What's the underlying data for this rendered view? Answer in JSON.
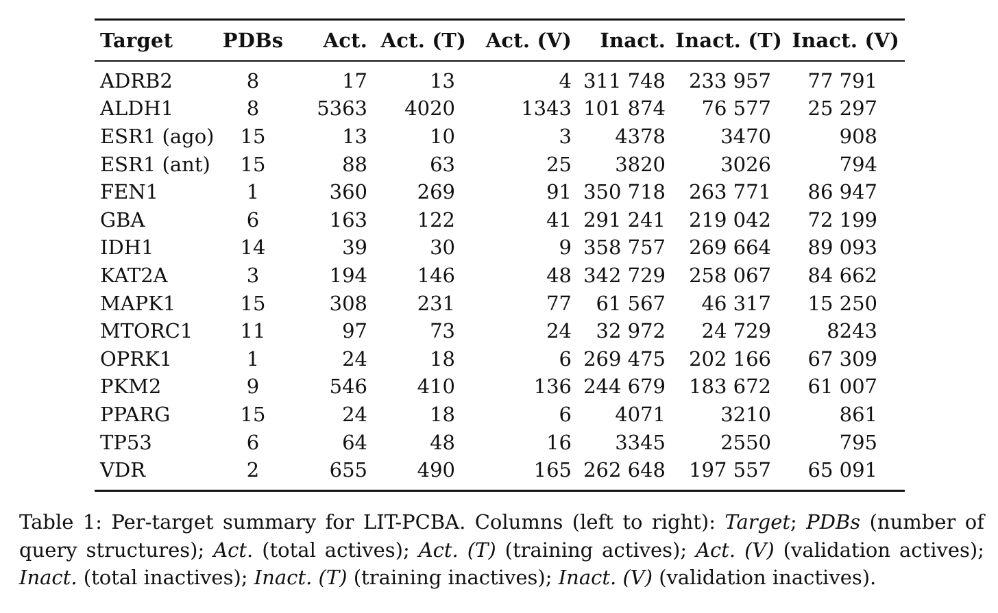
{
  "table": {
    "headers": [
      "Target",
      "PDBs",
      "Act.",
      "Act. (T)",
      "Act. (V)",
      "Inact.",
      "Inact. (T)",
      "Inact. (V)"
    ],
    "rows": [
      [
        "ADRB2",
        "8",
        "17",
        "13",
        "4",
        "311 748",
        "233 957",
        "77 791"
      ],
      [
        "ALDH1",
        "8",
        "5363",
        "4020",
        "1343",
        "101 874",
        "76 577",
        "25 297"
      ],
      [
        "ESR1 (ago)",
        "15",
        "13",
        "10",
        "3",
        "4378",
        "3470",
        "908"
      ],
      [
        "ESR1 (ant)",
        "15",
        "88",
        "63",
        "25",
        "3820",
        "3026",
        "794"
      ],
      [
        "FEN1",
        "1",
        "360",
        "269",
        "91",
        "350 718",
        "263 771",
        "86 947"
      ],
      [
        "GBA",
        "6",
        "163",
        "122",
        "41",
        "291 241",
        "219 042",
        "72 199"
      ],
      [
        "IDH1",
        "14",
        "39",
        "30",
        "9",
        "358 757",
        "269 664",
        "89 093"
      ],
      [
        "KAT2A",
        "3",
        "194",
        "146",
        "48",
        "342 729",
        "258 067",
        "84 662"
      ],
      [
        "MAPK1",
        "15",
        "308",
        "231",
        "77",
        "61 567",
        "46 317",
        "15 250"
      ],
      [
        "MTORC1",
        "11",
        "97",
        "73",
        "24",
        "32 972",
        "24 729",
        "8243"
      ],
      [
        "OPRK1",
        "1",
        "24",
        "18",
        "6",
        "269 475",
        "202 166",
        "67 309"
      ],
      [
        "PKM2",
        "9",
        "546",
        "410",
        "136",
        "244 679",
        "183 672",
        "61 007"
      ],
      [
        "PPARG",
        "15",
        "24",
        "18",
        "6",
        "4071",
        "3210",
        "861"
      ],
      [
        "TP53",
        "6",
        "64",
        "48",
        "16",
        "3345",
        "2550",
        "795"
      ],
      [
        "VDR",
        "2",
        "655",
        "490",
        "165",
        "262 648",
        "197 557",
        "65 091"
      ]
    ]
  },
  "caption": {
    "prefix": "Table 1: Per-target summary for LIT-PCBA. Columns (left to right): ",
    "t1": "Target",
    "s1": "; ",
    "t2": "PDBs",
    "s2": " (number of query structures); ",
    "t3": "Act.",
    "s3": " (total actives); ",
    "t4": "Act. (T)",
    "s4": " (training actives); ",
    "t5": "Act. (V)",
    "s5": " (validation actives); ",
    "t6": "Inact.",
    "s6": " (total inactives); ",
    "t7": "Inact. (T)",
    "s7": " (training inactives); ",
    "t8": "Inact. (V)",
    "s8": " (validation inactives)."
  }
}
